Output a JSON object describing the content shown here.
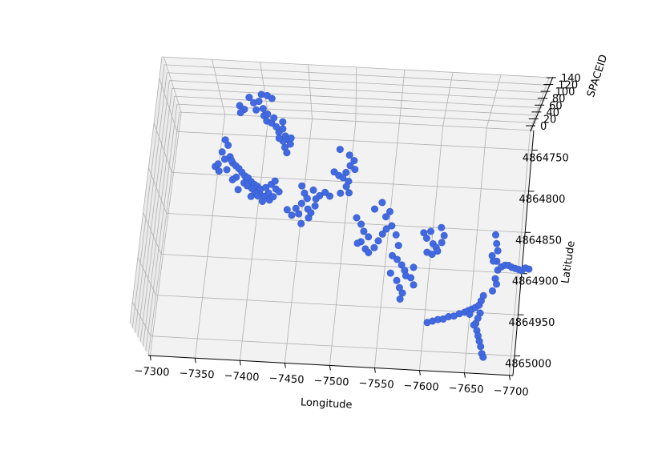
{
  "chart_data": {
    "type": "scatter",
    "projection": "3d",
    "title": "",
    "xlabel": "Longitude",
    "ylabel": "Latitude",
    "zlabel": "SPACEID",
    "x_ticks": [
      "−7300",
      "−7350",
      "−7400",
      "−7450",
      "−7500",
      "−7550",
      "−7600",
      "−7650",
      "−7700"
    ],
    "y_ticks": [
      "4864750",
      "4864800",
      "4864850",
      "4864900",
      "4864950",
      "4865000"
    ],
    "z_ticks": [
      "0",
      "20",
      "40",
      "60",
      "80",
      "100",
      "120",
      "140"
    ],
    "xlim": [
      -7290,
      -7710
    ],
    "ylim": [
      4864735,
      4865015
    ],
    "zlim": [
      0,
      140
    ],
    "grid": true,
    "marker_color": "#4169e1",
    "points": [
      [
        -7348,
        4864764
      ],
      [
        -7352,
        4864770
      ],
      [
        -7346,
        4864778
      ],
      [
        -7356,
        4864783
      ],
      [
        -7360,
        4864790
      ],
      [
        -7364,
        4864793
      ],
      [
        -7358,
        4864787
      ],
      [
        -7368,
        4864796
      ],
      [
        -7372,
        4864800
      ],
      [
        -7376,
        4864804
      ],
      [
        -7380,
        4864806
      ],
      [
        -7384,
        4864810
      ],
      [
        -7388,
        4864813
      ],
      [
        -7392,
        4864815
      ],
      [
        -7396,
        4864818
      ],
      [
        -7402,
        4864816
      ],
      [
        -7408,
        4864812
      ],
      [
        -7412,
        4864808
      ],
      [
        -7414,
        4864817
      ],
      [
        -7418,
        4864820
      ],
      [
        -7396,
        4864824
      ],
      [
        -7402,
        4864826
      ],
      [
        -7406,
        4864822
      ],
      [
        -7390,
        4864822
      ],
      [
        -7386,
        4864818
      ],
      [
        -7376,
        4864812
      ],
      [
        -7366,
        4864806
      ],
      [
        -7370,
        4864820
      ],
      [
        -7408,
        4864830
      ],
      [
        -7412,
        4864826
      ],
      [
        -7340,
        4864795
      ],
      [
        -7345,
        4864800
      ],
      [
        -7354,
        4864798
      ],
      [
        -7362,
        4864809
      ],
      [
        -7350,
        4864786
      ],
      [
        -7343,
        4864792
      ],
      [
        -7380,
        4864815
      ],
      [
        -7394,
        4864826
      ],
      [
        -7400,
        4864832
      ],
      [
        -7386,
        4864827
      ],
      [
        -7444,
        4864812
      ],
      [
        -7448,
        4864820
      ],
      [
        -7452,
        4864826
      ],
      [
        -7446,
        4864832
      ],
      [
        -7458,
        4864816
      ],
      [
        -7466,
        4864822
      ],
      [
        -7472,
        4864818
      ],
      [
        -7478,
        4864822
      ],
      [
        -7462,
        4864826
      ],
      [
        -7454,
        4864838
      ],
      [
        -7456,
        4864848
      ],
      [
        -7444,
        4864844
      ],
      [
        -7440,
        4864838
      ],
      [
        -7448,
        4864855
      ],
      [
        -7430,
        4864840
      ],
      [
        -7436,
        4864846
      ],
      [
        -7462,
        4864834
      ],
      [
        -7458,
        4864842
      ],
      [
        -7370,
        4864714
      ],
      [
        -7376,
        4864720
      ],
      [
        -7382,
        4864718
      ],
      [
        -7388,
        4864726
      ],
      [
        -7380,
        4864728
      ],
      [
        -7390,
        4864734
      ],
      [
        -7394,
        4864740
      ],
      [
        -7400,
        4864742
      ],
      [
        -7406,
        4864746
      ],
      [
        -7410,
        4864752
      ],
      [
        -7414,
        4864748
      ],
      [
        -7418,
        4864756
      ],
      [
        -7421,
        4864760
      ],
      [
        -7425,
        4864765
      ],
      [
        -7419,
        4864769
      ],
      [
        -7416,
        4864762
      ],
      [
        -7422,
        4864775
      ],
      [
        -7411,
        4864759
      ],
      [
        -7360,
        4864724
      ],
      [
        -7366,
        4864728
      ],
      [
        -7384,
        4864710
      ],
      [
        -7391,
        4864711
      ],
      [
        -7397,
        4864714
      ],
      [
        -7362,
        4864732
      ],
      [
        -7394,
        4864732
      ],
      [
        -7413,
        4864740
      ],
      [
        -7402,
        4864736
      ],
      [
        -7425,
        4864758
      ],
      [
        -7484,
        4864768
      ],
      [
        -7496,
        4864774
      ],
      [
        -7502,
        4864780
      ],
      [
        -7498,
        4864786
      ],
      [
        -7504,
        4864790
      ],
      [
        -7480,
        4864794
      ],
      [
        -7486,
        4864798
      ],
      [
        -7491,
        4864800
      ],
      [
        -7498,
        4864804
      ],
      [
        -7496,
        4864810
      ],
      [
        -7490,
        4864818
      ],
      [
        -7500,
        4864817
      ],
      [
        -7494,
        4864794
      ],
      [
        -7512,
        4864845
      ],
      [
        -7518,
        4864852
      ],
      [
        -7522,
        4864860
      ],
      [
        -7528,
        4864866
      ],
      [
        -7520,
        4864872
      ],
      [
        -7526,
        4864880
      ],
      [
        -7530,
        4864884
      ],
      [
        -7536,
        4864878
      ],
      [
        -7540,
        4864870
      ],
      [
        -7544,
        4864862
      ],
      [
        -7548,
        4864856
      ],
      [
        -7554,
        4864852
      ],
      [
        -7560,
        4864862
      ],
      [
        -7564,
        4864874
      ],
      [
        -7546,
        4864842
      ],
      [
        -7550,
        4864836
      ],
      [
        -7540,
        4864826
      ],
      [
        -7532,
        4864834
      ],
      [
        -7516,
        4864874
      ],
      [
        -7558,
        4864886
      ],
      [
        -7564,
        4864890
      ],
      [
        -7570,
        4864896
      ],
      [
        -7574,
        4864902
      ],
      [
        -7576,
        4864908
      ],
      [
        -7584,
        4864898
      ],
      [
        -7582,
        4864910
      ],
      [
        -7586,
        4864918
      ],
      [
        -7570,
        4864922
      ],
      [
        -7574,
        4864928
      ],
      [
        -7558,
        4864906
      ],
      [
        -7566,
        4864914
      ],
      [
        -7572,
        4864935
      ],
      [
        -7592,
        4864858
      ],
      [
        -7596,
        4864864
      ],
      [
        -7600,
        4864856
      ],
      [
        -7604,
        4864870
      ],
      [
        -7608,
        4864874
      ],
      [
        -7614,
        4864868
      ],
      [
        -7616,
        4864860
      ],
      [
        -7610,
        4864878
      ],
      [
        -7598,
        4864880
      ],
      [
        -7604,
        4864882
      ],
      [
        -7612,
        4864851
      ],
      [
        -7676,
        4864856
      ],
      [
        -7678,
        4864866
      ],
      [
        -7680,
        4864874
      ],
      [
        -7680,
        4864886
      ],
      [
        -7682,
        4864896
      ],
      [
        -7686,
        4864892
      ],
      [
        -7690,
        4864890
      ],
      [
        -7694,
        4864890
      ],
      [
        -7698,
        4864892
      ],
      [
        -7702,
        4864893
      ],
      [
        -7706,
        4864894
      ],
      [
        -7710,
        4864895
      ],
      [
        -7714,
        4864892
      ],
      [
        -7718,
        4864893
      ],
      [
        -7680,
        4864906
      ],
      [
        -7682,
        4864912
      ],
      [
        -7678,
        4864920
      ],
      [
        -7676,
        4864886
      ],
      [
        -7674,
        4864880
      ],
      [
        -7606,
        4864960
      ],
      [
        -7612,
        4864958
      ],
      [
        -7618,
        4864956
      ],
      [
        -7624,
        4864955
      ],
      [
        -7630,
        4864952
      ],
      [
        -7636,
        4864951
      ],
      [
        -7642,
        4864948
      ],
      [
        -7648,
        4864946
      ],
      [
        -7652,
        4864944
      ],
      [
        -7656,
        4864942
      ],
      [
        -7660,
        4864940
      ],
      [
        -7664,
        4864937
      ],
      [
        -7666,
        4864932
      ],
      [
        -7668,
        4864926
      ],
      [
        -7666,
        4864946
      ],
      [
        -7664,
        4864952
      ],
      [
        -7662,
        4864958
      ],
      [
        -7664,
        4864966
      ],
      [
        -7666,
        4864972
      ],
      [
        -7668,
        4864978
      ],
      [
        -7670,
        4864984
      ],
      [
        -7672,
        4864992
      ],
      [
        -7674,
        4864996
      ],
      [
        -7660,
        4864960
      ],
      [
        -7654,
        4864948
      ]
    ]
  }
}
